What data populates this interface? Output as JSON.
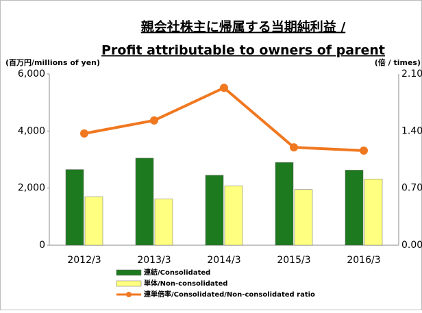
{
  "chart_data": {
    "type": "bar",
    "title": "親会社株主に帰属する当期純利益 /",
    "subtitle": "Profit attributable to owners of parent",
    "y_label": "(百万円/millions of yen)",
    "y2_label": "(倍 / times)",
    "categories": [
      "2012/3",
      "2013/3",
      "2014/3",
      "2015/3",
      "2016/3"
    ],
    "series": [
      {
        "name": "連結/Consolidated",
        "type": "bar",
        "color": "#1e7a1e",
        "values": [
          2650,
          3050,
          2450,
          2900,
          2630
        ]
      },
      {
        "name": "単体/Non-consolidated",
        "type": "bar",
        "color": "#ffff80",
        "values": [
          1700,
          1620,
          2080,
          1950,
          2320
        ]
      },
      {
        "name": "連単倍率/Consolidated/Non-consolidated ratio",
        "type": "line",
        "axis": "y2",
        "color": "#f07820",
        "values": [
          1.37,
          1.53,
          1.93,
          1.2,
          1.16
        ]
      }
    ],
    "ylim": [
      0,
      6000
    ],
    "yticks": [
      0,
      {
        "value": 2000,
        "label": "2,000"
      },
      {
        "value": 4000,
        "label": "4,000"
      },
      {
        "value": 6000,
        "label": "6,000"
      }
    ],
    "y2lim": [
      0,
      2.1
    ],
    "y2ticks": [
      {
        "value": 0,
        "label": "0.00"
      },
      {
        "value": 0.7,
        "label": "0.70"
      },
      {
        "value": 1.4,
        "label": "1.40"
      },
      {
        "value": 2.1,
        "label": "2.10"
      }
    ]
  }
}
